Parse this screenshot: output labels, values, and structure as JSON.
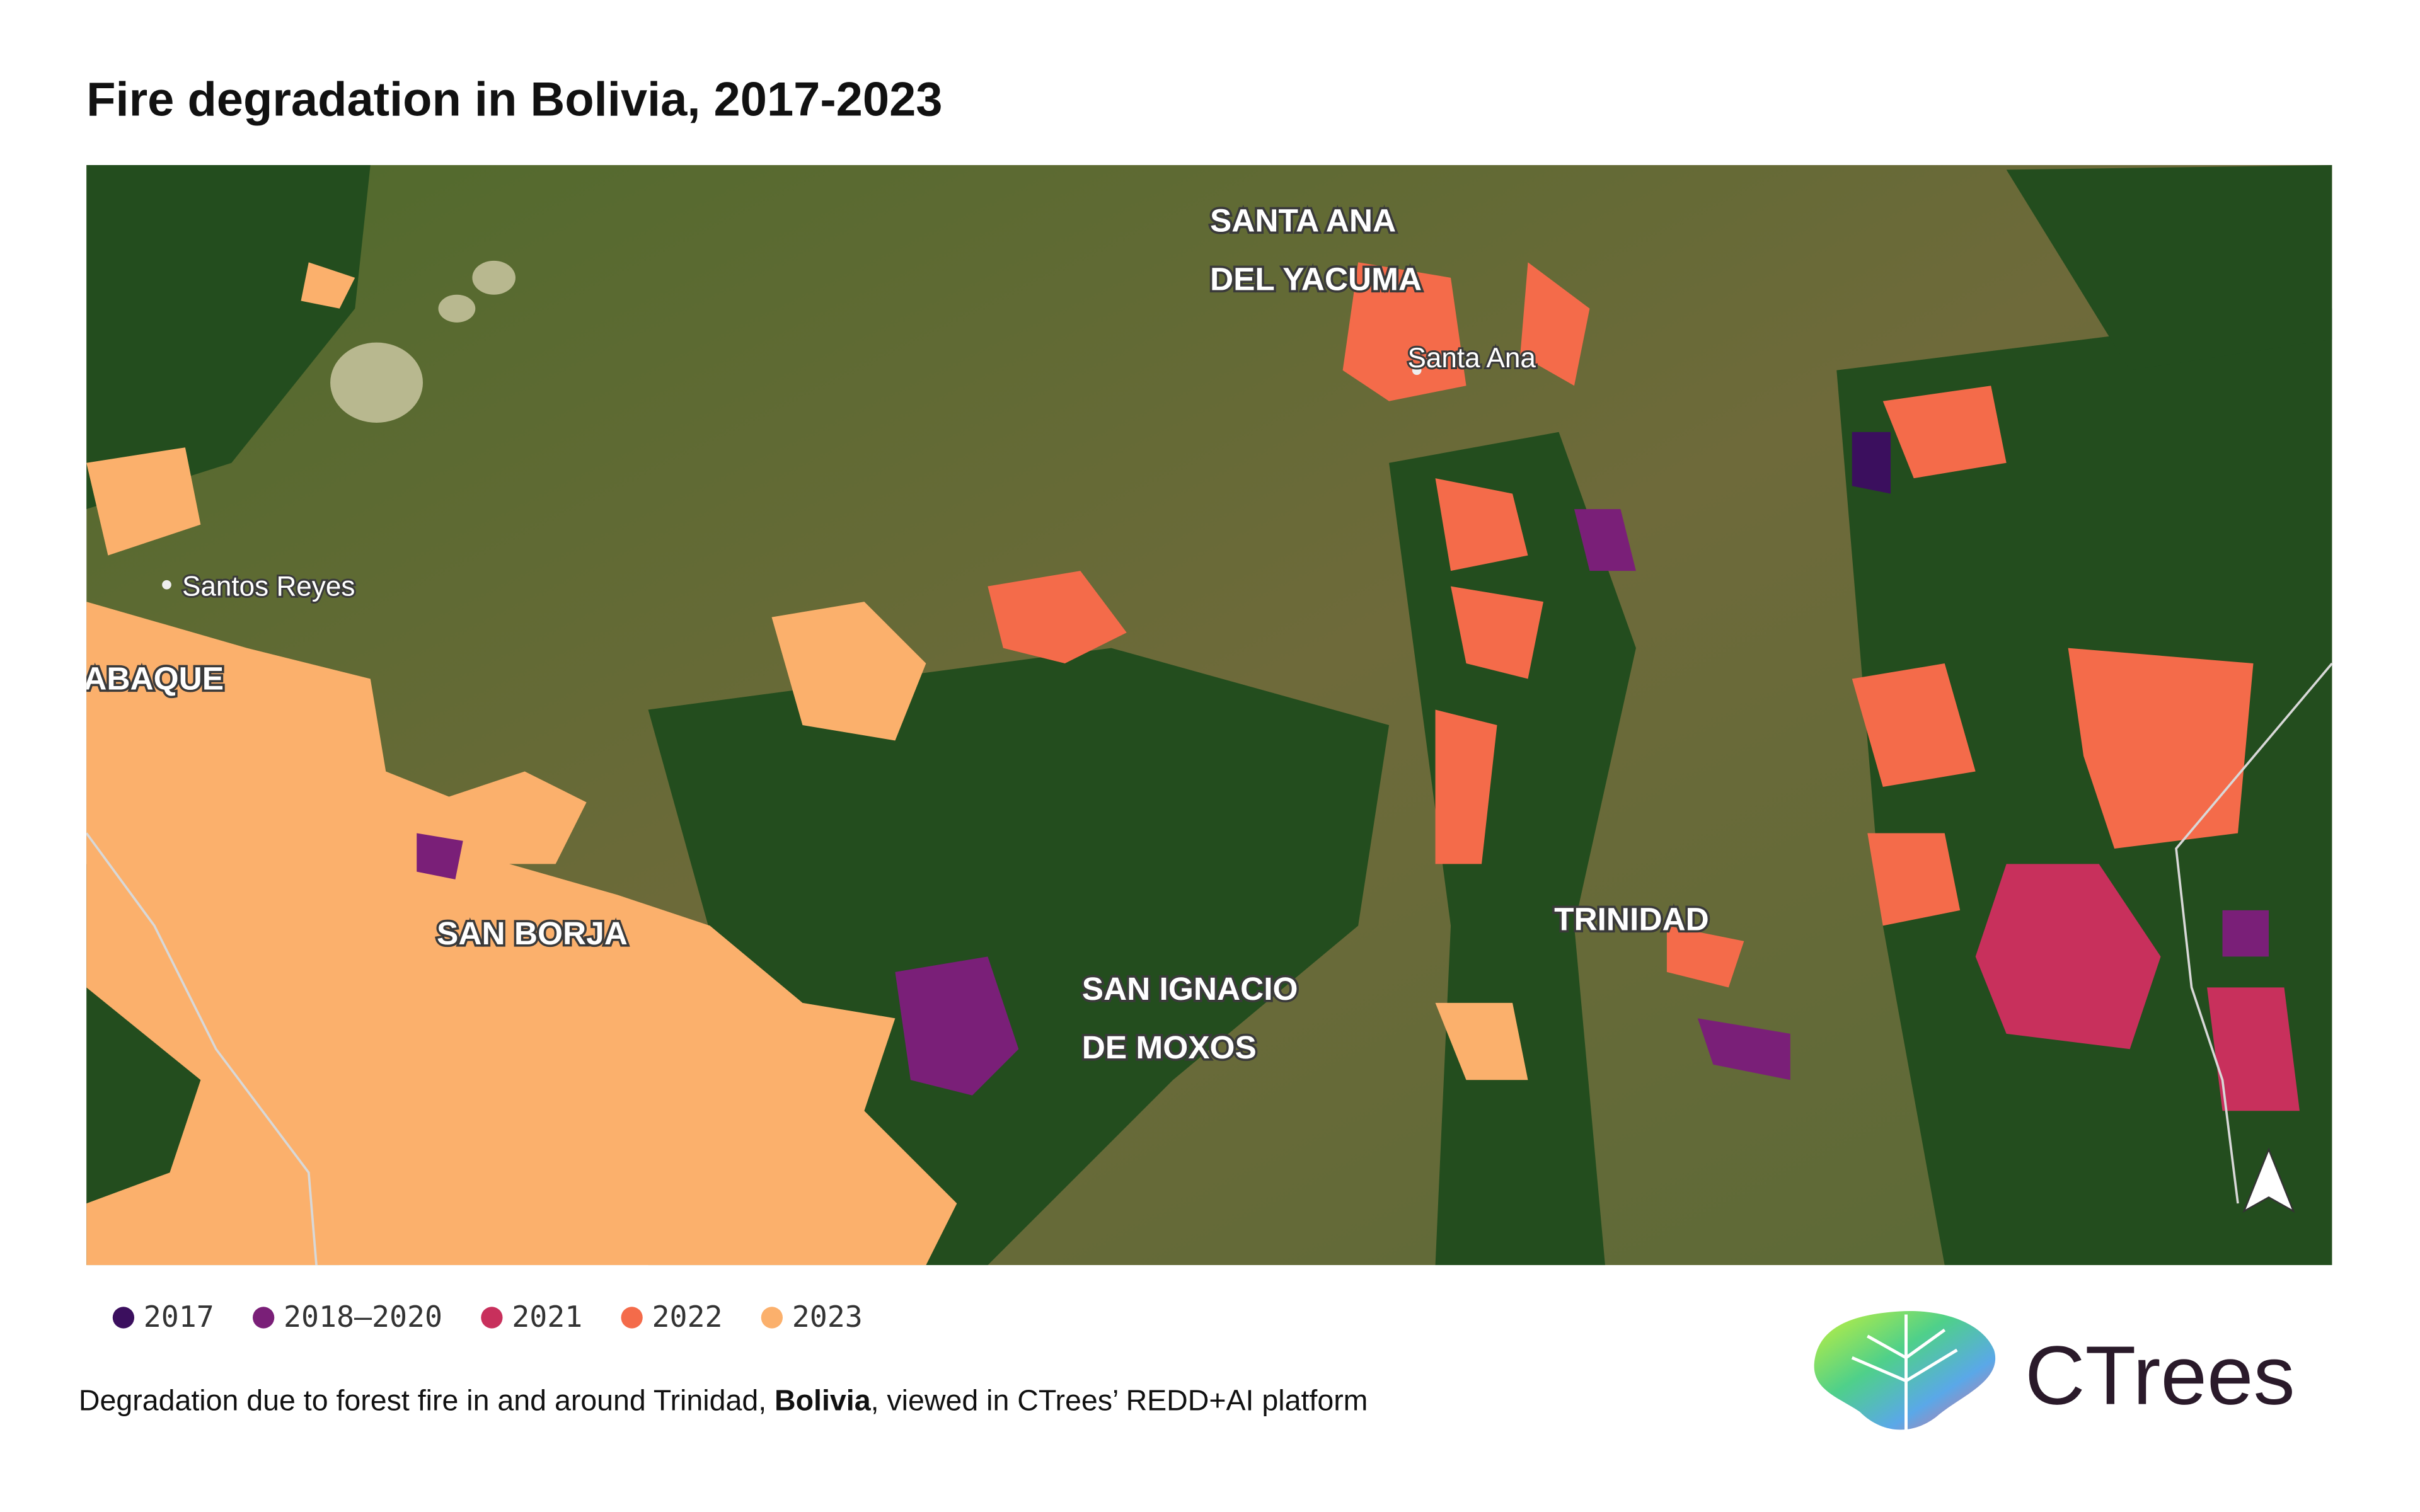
{
  "title": "Fire degradation in Bolivia, 2017-2023",
  "map": {
    "labels": [
      {
        "lines": [
          "SANTA ANA",
          "DEL YACUMA"
        ]
      },
      {
        "lines": [
          "Santa Ana"
        ]
      },
      {
        "lines": [
          "Santos Reyes"
        ]
      },
      {
        "lines": [
          "ABAQUE"
        ]
      },
      {
        "lines": [
          "SAN BORJA"
        ]
      },
      {
        "lines": [
          "SAN IGNACIO",
          "DE MOXOS"
        ]
      },
      {
        "lines": [
          "TRINIDAD"
        ]
      }
    ]
  },
  "legend": [
    {
      "label": "2017",
      "color": "#3b0f5e"
    },
    {
      "label": "2018–2020",
      "color": "#7a1f78"
    },
    {
      "label": "2021",
      "color": "#c8305c"
    },
    {
      "label": "2022",
      "color": "#f46b4a"
    },
    {
      "label": "2023",
      "color": "#fbb06c"
    }
  ],
  "caption": {
    "before": "Degradation due to forest fire in and around Trinidad, ",
    "bold": "Bolivia",
    "after": ", viewed in CTrees’ REDD+AI platform"
  },
  "logo": "CTrees"
}
